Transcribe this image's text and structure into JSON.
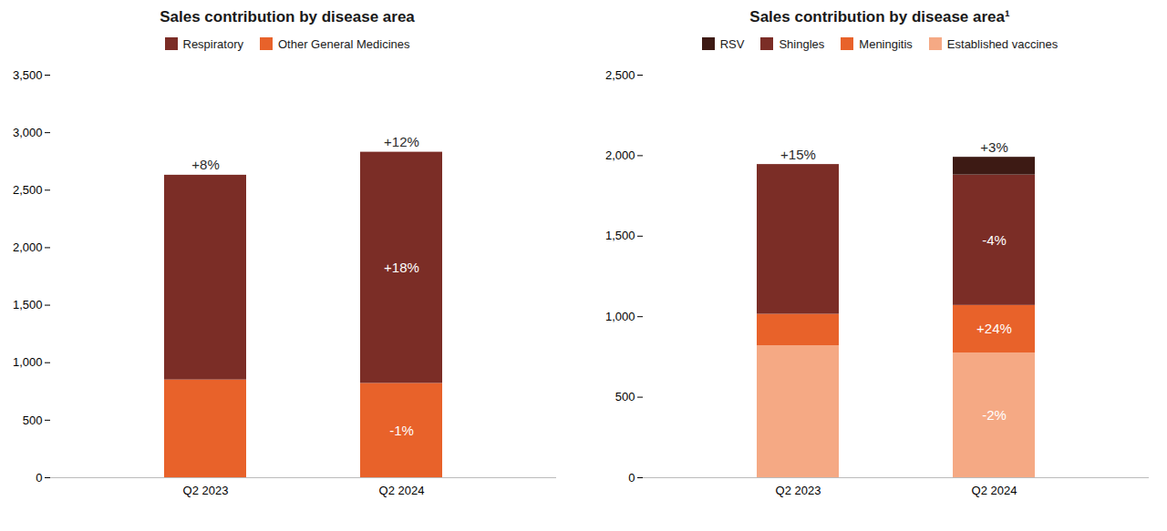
{
  "chart_data": [
    {
      "type": "bar",
      "stacked": true,
      "title": "Sales contribution by disease area",
      "categories": [
        "Q2 2023",
        "Q2 2024"
      ],
      "series": [
        {
          "name": "Respiratory",
          "color": "#7b2d26",
          "values": [
            1780,
            2010
          ]
        },
        {
          "name": "Other General Medicines",
          "color": "#e8622a",
          "values": [
            850,
            820
          ]
        }
      ],
      "ylim": [
        0,
        3500
      ],
      "yticks": [
        0,
        500,
        {
          "value": 1000,
          "label": "1,000"
        },
        {
          "value": 1500,
          "label": "1,500"
        },
        {
          "value": 2000,
          "label": "2,000"
        },
        {
          "value": 2500,
          "label": "2,500"
        },
        {
          "value": 3000,
          "label": "3,000"
        },
        {
          "value": 3500,
          "label": "3,500"
        }
      ],
      "grid": false,
      "legend": "top",
      "annotations": [
        {
          "text": "+8%",
          "category": "Q2 2023"
        },
        {
          "text": "+12%",
          "category": "Q2 2024"
        },
        {
          "text": "-1%",
          "category": "Q2 2024",
          "series": "Other General Medicines"
        },
        {
          "text": "+18%",
          "category": "Q2 2024",
          "series": "Respiratory"
        }
      ]
    },
    {
      "type": "bar",
      "stacked": true,
      "title": "Sales contribution by disease area¹",
      "categories": [
        "Q2 2023",
        "Q2 2024"
      ],
      "series": [
        {
          "name": "RSV",
          "color": "#3d1a14",
          "values": [
            0,
            110
          ]
        },
        {
          "name": "Shingles",
          "color": "#7b2d26",
          "values": [
            930,
            810
          ]
        },
        {
          "name": "Meningitis",
          "color": "#e8622a",
          "values": [
            195,
            295
          ]
        },
        {
          "name": "Established vaccines",
          "color": "#f5a984",
          "values": [
            820,
            775
          ]
        }
      ],
      "ylim": [
        0,
        2500
      ],
      "yticks": [
        0,
        500,
        {
          "value": 1000,
          "label": "1,000"
        },
        {
          "value": 1500,
          "label": "1,500"
        },
        {
          "value": 2000,
          "label": "2,000"
        },
        {
          "value": 2500,
          "label": "2,500"
        }
      ],
      "grid": false,
      "legend": "top",
      "annotations": [
        {
          "text": "+15%",
          "category": "Q2 2023"
        },
        {
          "text": "+3%",
          "category": "Q2 2024"
        },
        {
          "text": "-2%",
          "category": "Q2 2024",
          "series": "Established vaccines"
        },
        {
          "text": "+24%",
          "category": "Q2 2024",
          "series": "Meningitis"
        },
        {
          "text": "-4%",
          "category": "Q2 2024",
          "series": "Shingles"
        }
      ]
    }
  ]
}
